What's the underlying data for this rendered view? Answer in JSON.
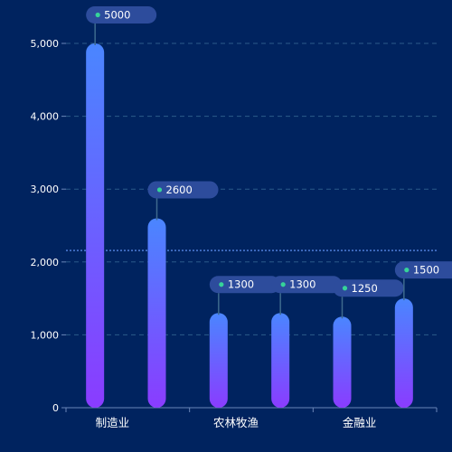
{
  "colors": {
    "background": "#00235f",
    "bar_top": "#4a86ff",
    "bar_bottom": "#8a3cff",
    "label_box": "#2d4c9c",
    "dot": "#36d399",
    "leader": "#3e6a8e",
    "gridline": "#2b5b8a",
    "axis": "#6a86b8",
    "average_line": "#6a9cff"
  },
  "chart_data": {
    "type": "bar",
    "title": "",
    "xlabel": "",
    "ylabel": "",
    "categories": [
      "制造业",
      "",
      "农林牧渔",
      "",
      "金融业",
      ""
    ],
    "values": [
      5000,
      2600,
      1300,
      1300,
      1250,
      1500
    ],
    "value_labels": [
      "5000",
      "2600",
      "1300",
      "1300",
      "1250",
      "1500"
    ],
    "yticks": [
      "0",
      "1,000",
      "2,000",
      "3,000",
      "4,000",
      "5,000"
    ],
    "ylim": [
      0,
      5000
    ],
    "average": 2158,
    "grid": true,
    "average_line": true,
    "legend": false
  }
}
